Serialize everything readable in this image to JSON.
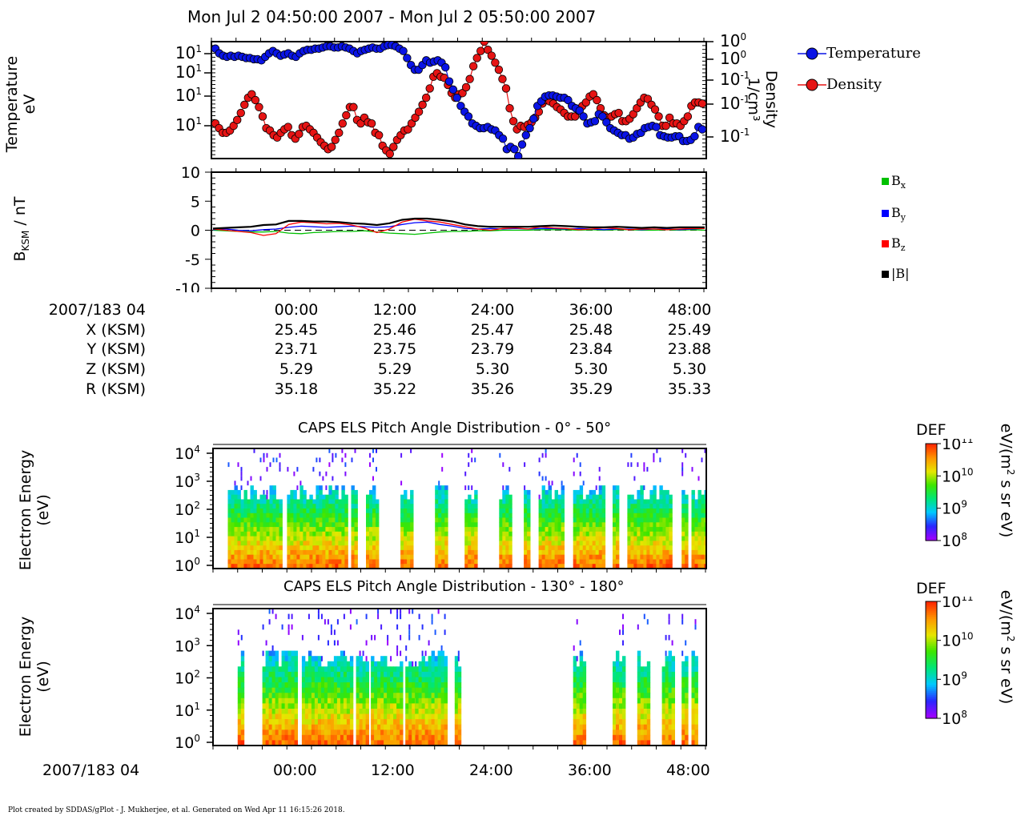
{
  "header": {
    "title": "Mon Jul 2 04:50:00 2007 - Mon Jul 2 05:50:00 2007"
  },
  "footer": {
    "text": "Plot created by SDDAS/gPlot - J. Mukherjee, et al.  Generated on Wed Apr 11 16:15:26 2018."
  },
  "colors": {
    "temperature": "#0a14e6",
    "density": "#e61414",
    "bx": "#00c000",
    "by": "#0000ff",
    "bz": "#ff0000",
    "btot": "#000000"
  },
  "chart_data": [
    {
      "type": "line",
      "panel": "temperature-density",
      "ylabel": "Temperature",
      "ylabel_unit": "eV",
      "y2label": "Density",
      "y2label_unit": "1/cm³",
      "left_ticks": [
        "10",
        "10",
        "10",
        "10"
      ],
      "left_exps": [
        "1",
        "1",
        "1",
        "1"
      ],
      "right_ticks": [
        "10",
        "10",
        "10",
        "10",
        "10"
      ],
      "right_exps": [
        "0",
        "0",
        "-1",
        "-1",
        "-1"
      ],
      "legend": [
        "Temperature",
        "Density"
      ],
      "series": [
        {
          "name": "Temperature",
          "values": [
            0.94,
            0.9,
            0.88,
            0.87,
            0.88,
            0.87,
            0.88,
            0.87,
            0.86,
            0.86,
            0.85,
            0.85,
            0.84,
            0.87,
            0.9,
            0.92,
            0.9,
            0.88,
            0.89,
            0.9,
            0.88,
            0.87,
            0.9,
            0.92,
            0.93,
            0.93,
            0.94,
            0.94,
            0.95,
            0.96,
            0.96,
            0.95,
            0.95,
            0.96,
            0.95,
            0.94,
            0.92,
            0.9,
            0.92,
            0.93,
            0.94,
            0.95,
            0.94,
            0.94,
            0.96,
            0.97,
            0.97,
            0.96,
            0.94,
            0.92,
            0.86,
            0.8,
            0.76,
            0.76,
            0.8,
            0.84,
            0.82,
            0.83,
            0.84,
            0.82,
            0.78,
            0.66,
            0.59,
            0.52,
            0.45,
            0.4,
            0.36,
            0.3,
            0.28,
            0.26,
            0.26,
            0.27,
            0.25,
            0.24,
            0.2,
            0.17,
            0.08,
            0.1,
            0.08,
            0.02,
            0.12,
            0.2,
            0.26,
            0.34,
            0.45,
            0.49,
            0.53,
            0.54,
            0.54,
            0.53,
            0.52,
            0.52,
            0.5,
            0.45,
            0.43,
            0.41,
            0.36,
            0.3,
            0.31,
            0.32,
            0.38,
            0.36,
            0.31,
            0.26,
            0.24,
            0.22,
            0.2,
            0.2,
            0.17,
            0.18,
            0.21,
            0.22,
            0.26,
            0.27,
            0.28,
            0.27,
            0.2,
            0.19,
            0.18,
            0.18,
            0.19,
            0.19,
            0.15,
            0.15,
            0.16,
            0.19,
            0.27,
            0.25
          ]
        },
        {
          "name": "Density",
          "values": [
            0.3,
            0.26,
            0.22,
            0.22,
            0.24,
            0.28,
            0.33,
            0.39,
            0.46,
            0.52,
            0.55,
            0.5,
            0.44,
            0.36,
            0.26,
            0.24,
            0.2,
            0.18,
            0.22,
            0.25,
            0.27,
            0.2,
            0.17,
            0.21,
            0.27,
            0.28,
            0.25,
            0.22,
            0.18,
            0.14,
            0.11,
            0.08,
            0.1,
            0.16,
            0.22,
            0.3,
            0.37,
            0.44,
            0.44,
            0.33,
            0.3,
            0.35,
            0.31,
            0.3,
            0.22,
            0.2,
            0.11,
            0.07,
            0.04,
            0.1,
            0.16,
            0.2,
            0.24,
            0.25,
            0.3,
            0.35,
            0.4,
            0.46,
            0.52,
            0.6,
            0.7,
            0.73,
            0.7,
            0.69,
            0.63,
            0.56,
            0.52,
            0.55,
            0.56,
            0.61,
            0.68,
            0.79,
            0.86,
            0.92,
            1.0,
            0.93,
            0.88,
            0.82,
            0.76,
            0.68,
            0.6,
            0.43,
            0.32,
            0.25,
            0.28,
            0.27,
            0.29,
            0.31,
            0.35,
            0.4,
            0.47,
            0.5,
            0.49,
            0.47,
            0.44,
            0.42,
            0.39,
            0.36,
            0.36,
            0.36,
            0.41,
            0.45,
            0.48,
            0.53,
            0.55,
            0.5,
            0.43,
            0.37,
            0.35,
            0.36,
            0.38,
            0.39,
            0.32,
            0.32,
            0.34,
            0.38,
            0.43,
            0.48,
            0.52,
            0.51,
            0.46,
            0.42,
            0.36,
            0.28,
            0.28,
            0.35,
            0.3,
            0.3,
            0.28,
            0.32,
            0.36,
            0.45,
            0.48,
            0.48,
            0.47
          ]
        }
      ]
    },
    {
      "type": "line",
      "panel": "magnetic-field",
      "ylabel": "B",
      "ylabel_sub": "KSM",
      "ylabel_unit": " / nT",
      "yticks": [
        "10",
        "5",
        "0",
        "-5",
        "-10"
      ],
      "ylim": [
        -10,
        10
      ],
      "legend": [
        "B",
        "B",
        "B",
        "|B|"
      ],
      "legend_subs": [
        "x",
        "y",
        "z",
        ""
      ],
      "series": [
        {
          "name": "Bx",
          "values": [
            0.0,
            -0.1,
            -0.2,
            -0.3,
            -0.3,
            -0.2,
            -0.5,
            -0.6,
            -0.4,
            -0.3,
            -0.2,
            -0.2,
            -0.1,
            -0.3,
            -0.5,
            -0.6,
            -0.7,
            -0.5,
            -0.3,
            -0.2,
            -0.2,
            -0.1,
            -0.1,
            0.0,
            0.0,
            0.0,
            0.1,
            0.1,
            0.1,
            0.0,
            0.1,
            0.0,
            0.1,
            0.1,
            0.0,
            0.0,
            0.1,
            0.0,
            0.1,
            0.0
          ]
        },
        {
          "name": "By",
          "values": [
            0.1,
            0.2,
            0.0,
            -0.1,
            0.1,
            0.2,
            0.5,
            0.7,
            0.6,
            0.5,
            0.6,
            0.7,
            0.6,
            0.5,
            0.6,
            1.0,
            1.3,
            1.4,
            1.0,
            0.7,
            0.3,
            0.2,
            0.3,
            0.2,
            0.3,
            0.2,
            0.3,
            0.3,
            0.2,
            0.3,
            0.2,
            0.1,
            0.2,
            0.2,
            0.1,
            0.2,
            0.2,
            0.1,
            0.2,
            0.3
          ]
        },
        {
          "name": "Bz",
          "values": [
            0.2,
            0.0,
            -0.2,
            -0.4,
            -0.9,
            -0.6,
            1.0,
            1.4,
            1.3,
            1.1,
            1.2,
            0.9,
            0.4,
            -0.4,
            0.2,
            1.4,
            1.9,
            1.6,
            1.4,
            1.0,
            0.6,
            0.2,
            0.0,
            0.3,
            0.4,
            0.2,
            0.6,
            0.4,
            0.3,
            0.1,
            0.2,
            0.4,
            0.3,
            0.1,
            0.2,
            0.2,
            0.1,
            0.2,
            0.3,
            0.3
          ]
        },
        {
          "name": "|B|",
          "values": [
            0.3,
            0.4,
            0.5,
            0.6,
            0.9,
            1.0,
            1.6,
            1.6,
            1.5,
            1.5,
            1.4,
            1.2,
            1.1,
            0.9,
            1.2,
            1.8,
            2.0,
            2.0,
            1.8,
            1.5,
            1.0,
            0.7,
            0.6,
            0.6,
            0.6,
            0.6,
            0.7,
            0.8,
            0.7,
            0.6,
            0.5,
            0.5,
            0.6,
            0.5,
            0.4,
            0.5,
            0.4,
            0.5,
            0.5,
            0.5
          ]
        }
      ]
    },
    {
      "type": "heatmap",
      "panel": "pad-0-50",
      "title": "CAPS ELS Pitch Angle Distribution - 0° - 50°",
      "ylabel": "Electron Energy",
      "ylabel_unit": "(eV)",
      "yticks": [
        "10",
        "10",
        "10",
        "10",
        "10"
      ],
      "yexps": [
        "4",
        "3",
        "2",
        "1",
        "0"
      ],
      "colorbar_label": "DEF",
      "colorbar_unit": "eV/(m",
      "colorbar_unit_exp": "2",
      "colorbar_unit_rest": " s sr eV)",
      "colorbar_ticks": [
        "10",
        "10",
        "10",
        "10"
      ],
      "colorbar_exps": [
        "11",
        "10",
        "9",
        "8"
      ],
      "intervals": [
        [
          0.03,
          0.14
        ],
        [
          0.15,
          0.27
        ],
        [
          0.28,
          0.29
        ],
        [
          0.31,
          0.33
        ],
        [
          0.38,
          0.4
        ],
        [
          0.45,
          0.47
        ],
        [
          0.51,
          0.53
        ],
        [
          0.58,
          0.6
        ],
        [
          0.63,
          0.64
        ],
        [
          0.66,
          0.71
        ],
        [
          0.73,
          0.79
        ],
        [
          0.81,
          0.82
        ],
        [
          0.84,
          0.93
        ],
        [
          0.95,
          0.96
        ],
        [
          0.97,
          1.0
        ]
      ]
    },
    {
      "type": "heatmap",
      "panel": "pad-130-180",
      "title": "CAPS ELS Pitch Angle Distribution - 130° - 180°",
      "ylabel": "Electron Energy",
      "ylabel_unit": "(eV)",
      "yticks": [
        "10",
        "10",
        "10",
        "10",
        "10"
      ],
      "yexps": [
        "4",
        "3",
        "2",
        "1",
        "0"
      ],
      "colorbar_label": "DEF",
      "colorbar_unit": "eV/(m",
      "colorbar_unit_exp": "2",
      "colorbar_unit_rest": " s sr eV)",
      "colorbar_ticks": [
        "10",
        "10",
        "10",
        "10"
      ],
      "colorbar_exps": [
        "11",
        "10",
        "9",
        "8"
      ],
      "intervals": [
        [
          0.05,
          0.06
        ],
        [
          0.1,
          0.17
        ],
        [
          0.18,
          0.28
        ],
        [
          0.29,
          0.31
        ],
        [
          0.32,
          0.38
        ],
        [
          0.39,
          0.41
        ],
        [
          0.41,
          0.47
        ],
        [
          0.49,
          0.5
        ],
        [
          0.73,
          0.75
        ],
        [
          0.81,
          0.83
        ],
        [
          0.86,
          0.88
        ],
        [
          0.91,
          0.93
        ],
        [
          0.95,
          0.96
        ],
        [
          0.97,
          0.98
        ],
        [
          1.0,
          1.0
        ]
      ]
    }
  ],
  "ephemeris": {
    "rows": [
      {
        "label": "2007/183 04",
        "values": [
          "00:00",
          "12:00",
          "24:00",
          "36:00",
          "48:00"
        ]
      },
      {
        "label": "X (KSM)",
        "values": [
          "25.45",
          "25.46",
          "25.47",
          "25.48",
          "25.49"
        ]
      },
      {
        "label": "Y (KSM)",
        "values": [
          "23.71",
          "23.75",
          "23.79",
          "23.84",
          "23.88"
        ]
      },
      {
        "label": "Z (KSM)",
        "values": [
          "5.29",
          "5.29",
          "5.30",
          "5.30",
          "5.30"
        ]
      },
      {
        "label": "R (KSM)",
        "values": [
          "35.18",
          "35.22",
          "35.26",
          "35.29",
          "35.33"
        ]
      }
    ]
  },
  "bottom_axis": {
    "label": "2007/183 04",
    "values": [
      "00:00",
      "12:00",
      "24:00",
      "36:00",
      "48:00"
    ]
  }
}
